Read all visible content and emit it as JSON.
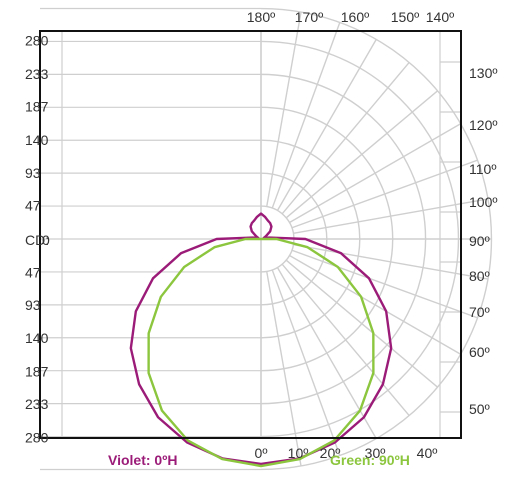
{
  "chart_data": {
    "type": "polar",
    "unit_label": "CD:",
    "cd_ticks_upper": [
      "280",
      "233",
      "187",
      "140",
      "93",
      "47"
    ],
    "cd_zero": "0",
    "cd_ticks_lower": [
      "47",
      "93",
      "140",
      "187",
      "233",
      "280"
    ],
    "angle_labels_top": [
      "180º",
      "170º",
      "160º",
      "150º",
      "140º"
    ],
    "angle_labels_right": [
      "130º",
      "120º",
      "110º",
      "100º",
      "90º",
      "80º",
      "70º",
      "60º",
      "50º"
    ],
    "angle_labels_bottom": [
      "0º",
      "10º",
      "20º",
      "30º",
      "40º"
    ],
    "angle_values_top": [
      180,
      170,
      160,
      150,
      140
    ],
    "angle_values_right": [
      130,
      120,
      110,
      100,
      90,
      80,
      70,
      60,
      50
    ],
    "angle_values_bottom": [
      0,
      10,
      20,
      30,
      40
    ],
    "rings_max": 327,
    "ring_step": 46.7,
    "grid": true,
    "series": [
      {
        "name": "Violet: 0ºH",
        "color": "#9b1c78",
        "angles": [
          0,
          10,
          20,
          30,
          40,
          50,
          60,
          70,
          80,
          90,
          100,
          110,
          120,
          130,
          140,
          150,
          160,
          170,
          180
        ],
        "values": [
          319,
          316,
          307,
          292,
          269,
          241,
          205,
          163,
          115,
          63,
          12,
          4,
          8,
          17,
          23,
          26,
          28,
          32,
          36
        ]
      },
      {
        "name": "Green: 90ºH",
        "color": "#8cc63f",
        "angles": [
          0,
          10,
          20,
          30,
          40,
          50,
          60,
          70,
          80,
          90,
          100,
          110,
          120,
          130,
          140,
          150,
          160,
          170,
          180
        ],
        "values": [
          322,
          317,
          304,
          281,
          248,
          208,
          164,
          116,
          67,
          22,
          0,
          0,
          0,
          0,
          0,
          0,
          0,
          0,
          0
        ]
      }
    ]
  },
  "legend": {
    "left": "Violet: 0ºH",
    "right": "Green: 90ºH",
    "left_color": "#9b1c78",
    "right_color": "#8cc63f"
  }
}
